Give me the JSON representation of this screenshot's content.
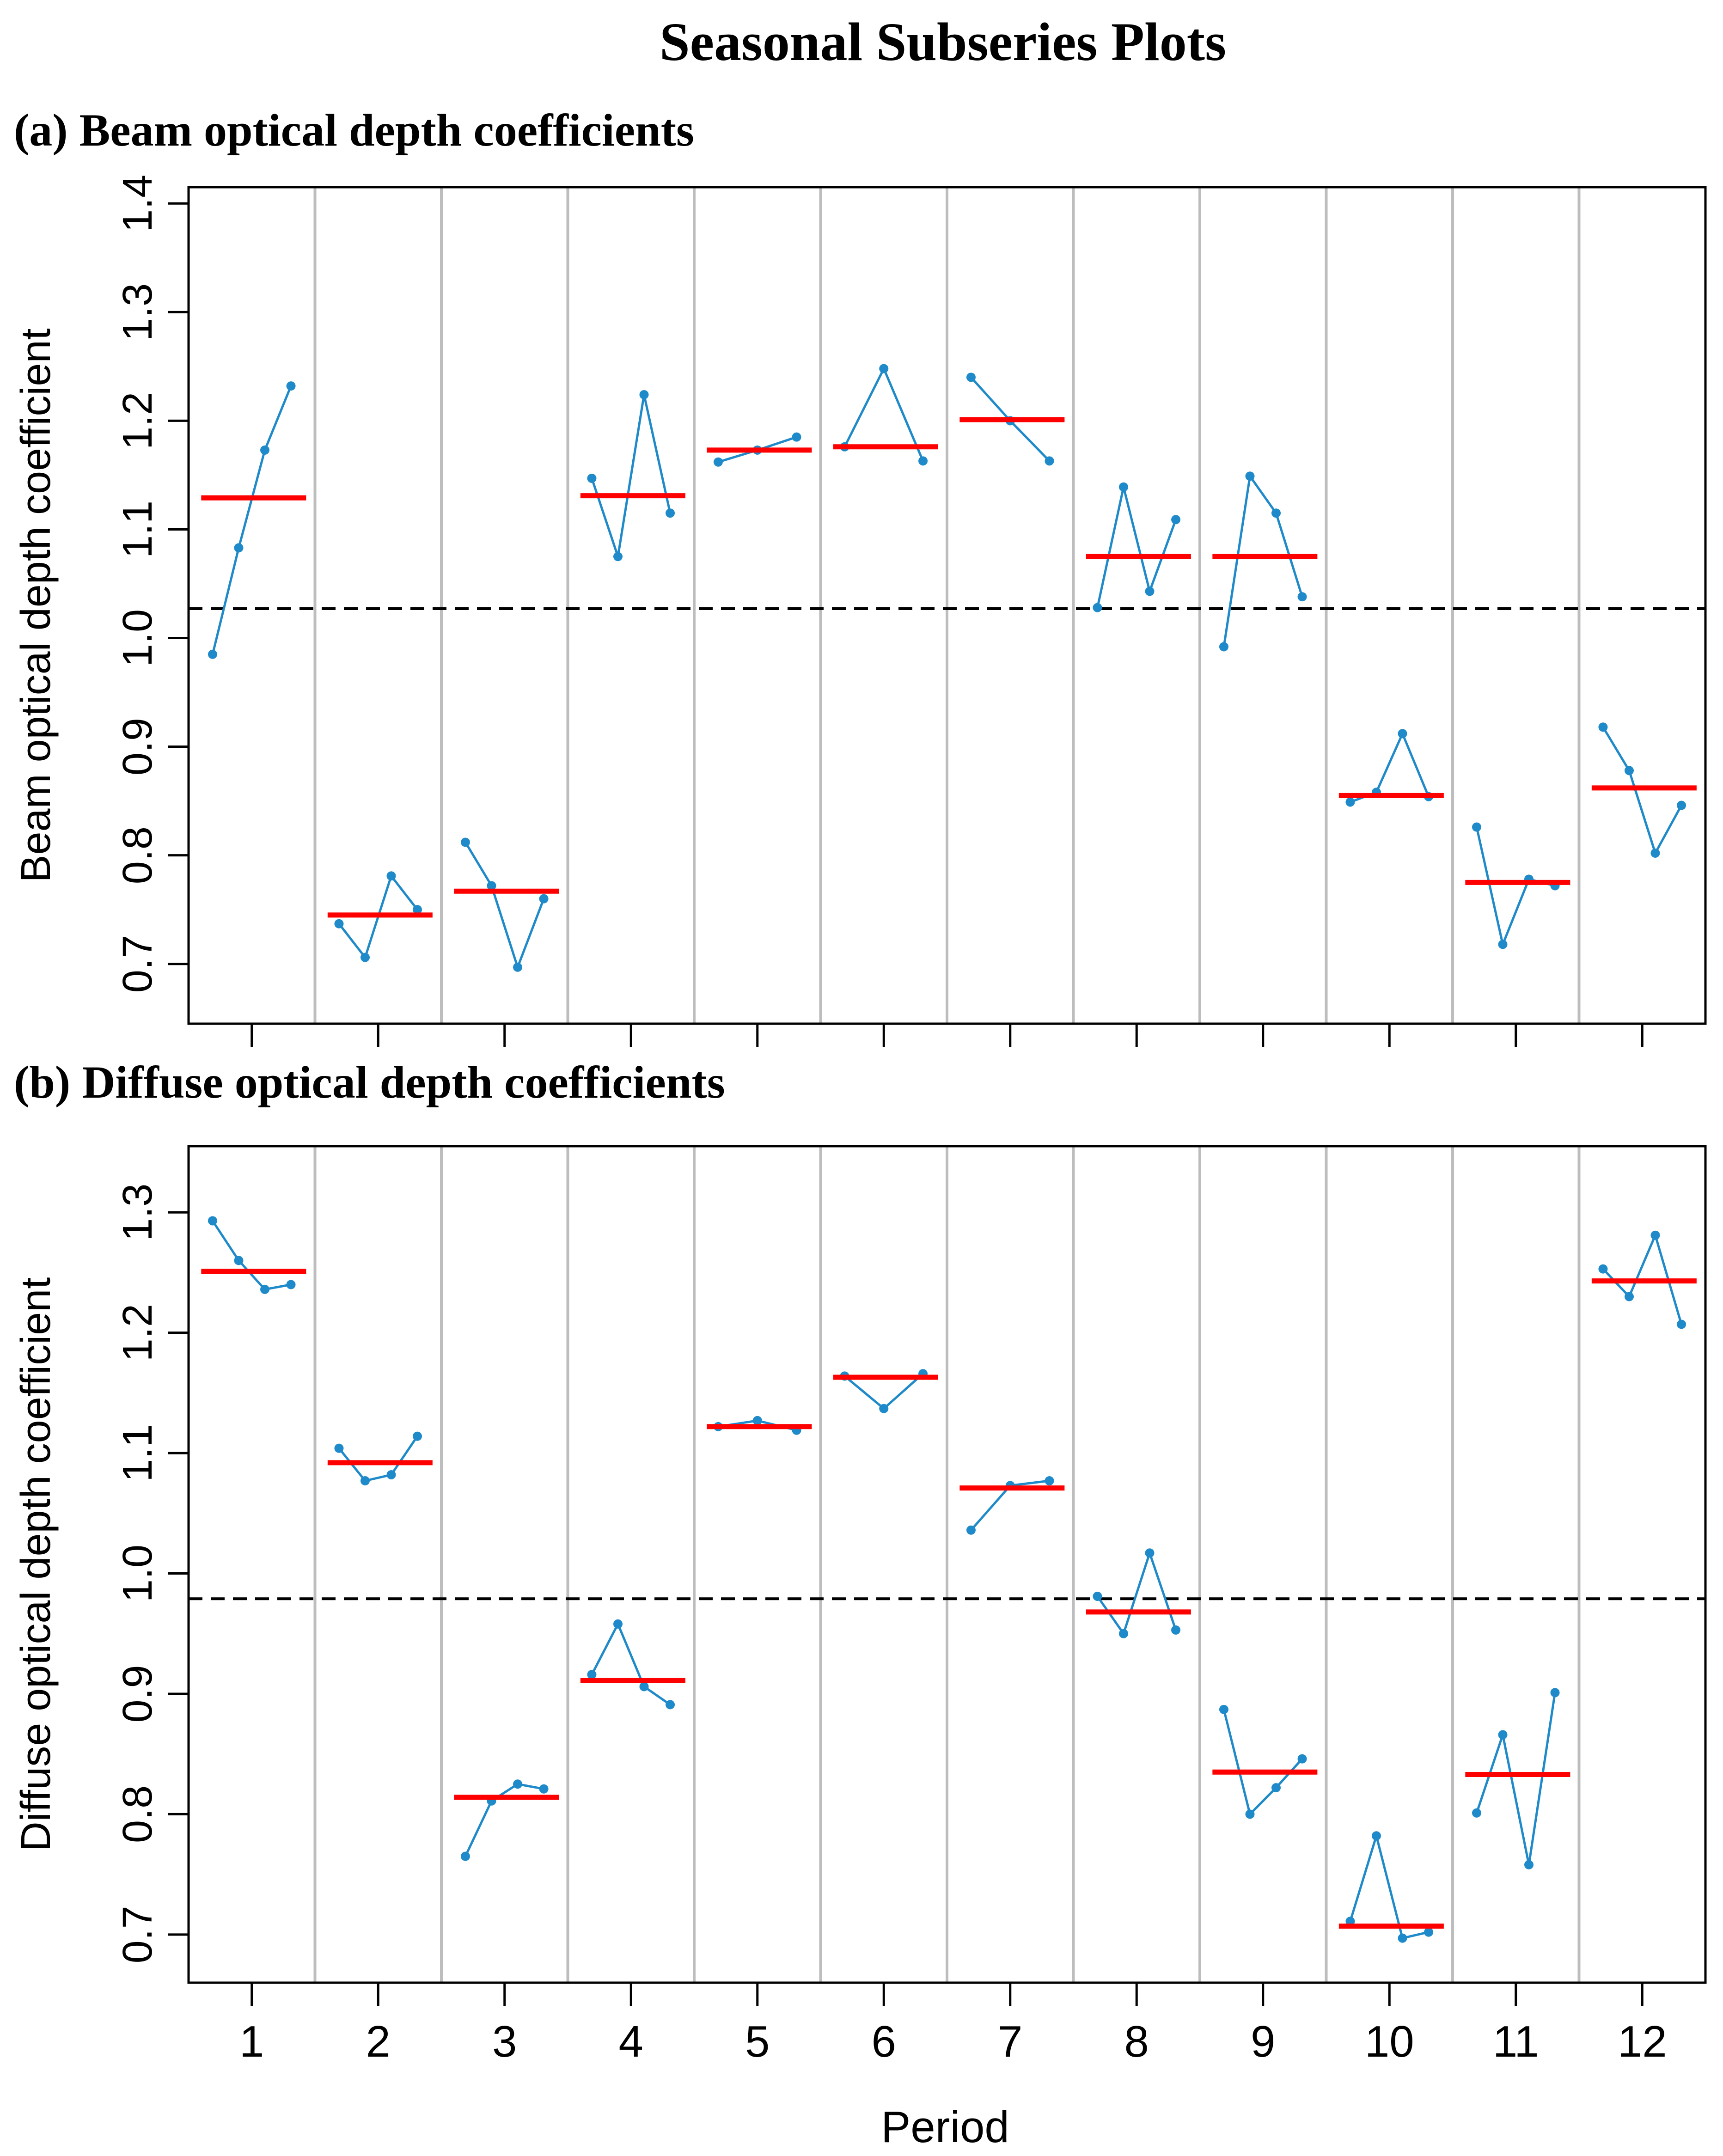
{
  "figure_title": "Seasonal Subseries Plots",
  "xlabel": "Period",
  "colors": {
    "series": "#1f8ac9",
    "mean": "#ff0000",
    "overall_mean": "#000000",
    "separator": "#bdbdbd",
    "frame": "#000000"
  },
  "chart_data": [
    {
      "type": "line",
      "panel_title": "(a) Beam optical depth coefficients",
      "ylabel": "Beam optical depth coefficient",
      "ylim": [
        0.645,
        1.415
      ],
      "yticks": [
        0.7,
        0.8,
        0.9,
        1.0,
        1.1,
        1.2,
        1.3,
        1.4
      ],
      "ytick_labels": [
        "0.7",
        "0.8",
        "0.9",
        "1.0",
        "1.1",
        "1.2",
        "1.3",
        "1.4"
      ],
      "categories": [
        "1",
        "2",
        "3",
        "4",
        "5",
        "6",
        "7",
        "8",
        "9",
        "10",
        "11",
        "12"
      ],
      "overall_mean": 1.027,
      "periods": [
        {
          "period": "1",
          "values": [
            0.985,
            1.083,
            1.173,
            1.232
          ],
          "mean": 1.129
        },
        {
          "period": "2",
          "values": [
            0.737,
            0.706,
            0.781,
            0.75
          ],
          "mean": 0.745
        },
        {
          "period": "3",
          "values": [
            0.812,
            0.772,
            0.697,
            0.76
          ],
          "mean": 0.767
        },
        {
          "period": "4",
          "values": [
            1.147,
            1.075,
            1.224,
            1.115
          ],
          "mean": 1.131
        },
        {
          "period": "5",
          "values": [
            1.162,
            1.173,
            1.185
          ],
          "mean": 1.173
        },
        {
          "period": "6",
          "values": [
            1.176,
            1.248,
            1.163
          ],
          "mean": 1.176
        },
        {
          "period": "7",
          "values": [
            1.24,
            1.2,
            1.163
          ],
          "mean": 1.201
        },
        {
          "period": "8",
          "values": [
            1.028,
            1.139,
            1.043,
            1.109
          ],
          "mean": 1.075
        },
        {
          "period": "9",
          "values": [
            0.992,
            1.149,
            1.115,
            1.038
          ],
          "mean": 1.075
        },
        {
          "period": "10",
          "values": [
            0.849,
            0.858,
            0.912,
            0.854
          ],
          "mean": 0.855
        },
        {
          "period": "11",
          "values": [
            0.826,
            0.718,
            0.778,
            0.772
          ],
          "mean": 0.775
        },
        {
          "period": "12",
          "values": [
            0.918,
            0.878,
            0.802,
            0.846
          ],
          "mean": 0.862
        }
      ]
    },
    {
      "type": "line",
      "panel_title": "(b) Diffuse optical depth coefficients",
      "ylabel": "Diffuse optical depth coefficient",
      "ylim": [
        0.66,
        1.355
      ],
      "yticks": [
        0.7,
        0.8,
        0.9,
        1.0,
        1.1,
        1.2,
        1.3
      ],
      "ytick_labels": [
        "0.7",
        "0.8",
        "0.9",
        "1.0",
        "1.1",
        "1.2",
        "1.3"
      ],
      "categories": [
        "1",
        "2",
        "3",
        "4",
        "5",
        "6",
        "7",
        "8",
        "9",
        "10",
        "11",
        "12"
      ],
      "overall_mean": 0.979,
      "periods": [
        {
          "period": "1",
          "values": [
            1.293,
            1.26,
            1.236,
            1.24
          ],
          "mean": 1.251
        },
        {
          "period": "2",
          "values": [
            1.104,
            1.077,
            1.082,
            1.114
          ],
          "mean": 1.092
        },
        {
          "period": "3",
          "values": [
            0.765,
            0.811,
            0.825,
            0.821
          ],
          "mean": 0.814
        },
        {
          "period": "4",
          "values": [
            0.916,
            0.958,
            0.906,
            0.891
          ],
          "mean": 0.911
        },
        {
          "period": "5",
          "values": [
            1.122,
            1.127,
            1.119
          ],
          "mean": 1.122
        },
        {
          "period": "6",
          "values": [
            1.164,
            1.137,
            1.166
          ],
          "mean": 1.163
        },
        {
          "period": "7",
          "values": [
            1.036,
            1.073,
            1.077
          ],
          "mean": 1.071
        },
        {
          "period": "8",
          "values": [
            0.981,
            0.95,
            1.017,
            0.953
          ],
          "mean": 0.968
        },
        {
          "period": "9",
          "values": [
            0.887,
            0.8,
            0.822,
            0.846
          ],
          "mean": 0.835
        },
        {
          "period": "10",
          "values": [
            0.711,
            0.782,
            0.697,
            0.702
          ],
          "mean": 0.707
        },
        {
          "period": "11",
          "values": [
            0.801,
            0.866,
            0.758,
            0.901
          ],
          "mean": 0.833
        },
        {
          "period": "12",
          "values": [
            1.253,
            1.23,
            1.281,
            1.207
          ],
          "mean": 1.243
        }
      ]
    }
  ]
}
